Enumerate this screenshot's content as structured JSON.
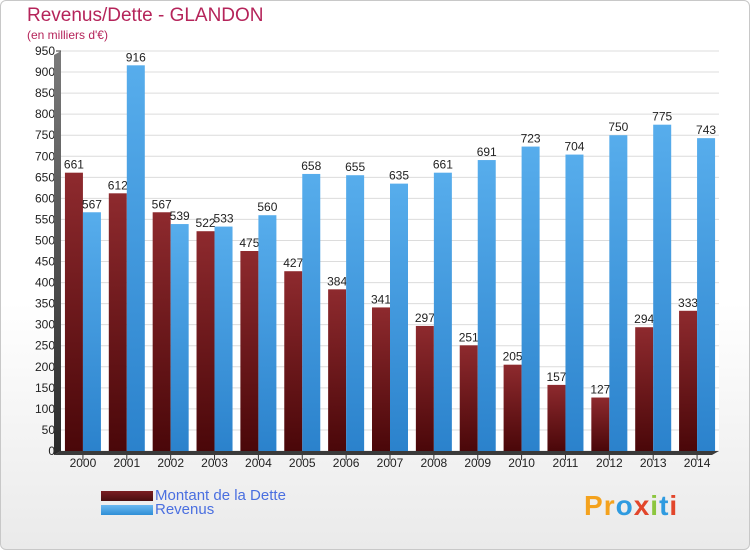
{
  "title": "Revenus/Dette - GLANDON",
  "subtitle": "(en milliers d'€)",
  "logo": {
    "text": "Proxiti",
    "letters": [
      "P",
      "r",
      "o",
      "x",
      "i",
      "t",
      "i"
    ],
    "colors": [
      "#f4a21d",
      "#f4a21d",
      "#2f9be0",
      "#e2462b",
      "#8cc63e",
      "#2f9be0",
      "#e2462b"
    ]
  },
  "chart_data": {
    "type": "bar",
    "title": "Revenus/Dette - GLANDON",
    "subtitle": "(en milliers d'€)",
    "categories": [
      "2000",
      "2001",
      "2002",
      "2003",
      "2004",
      "2005",
      "2006",
      "2007",
      "2008",
      "2009",
      "2010",
      "2011",
      "2012",
      "2013",
      "2014"
    ],
    "series": [
      {
        "name": "Montant de la Dette",
        "color": "#7a1e22",
        "values": [
          661,
          612,
          567,
          522,
          475,
          427,
          384,
          341,
          297,
          251,
          205,
          157,
          127,
          294,
          333
        ]
      },
      {
        "name": "Revenus",
        "color": "#3a9be2",
        "values": [
          567,
          916,
          539,
          533,
          560,
          658,
          655,
          635,
          661,
          691,
          723,
          704,
          750,
          775,
          743
        ]
      }
    ],
    "ylim": [
      0,
      950
    ],
    "yticks": [
      0,
      50,
      100,
      150,
      200,
      250,
      300,
      350,
      400,
      450,
      500,
      550,
      600,
      650,
      700,
      750,
      800,
      850,
      900,
      950
    ],
    "grid": true,
    "legend": "bottom-left"
  }
}
